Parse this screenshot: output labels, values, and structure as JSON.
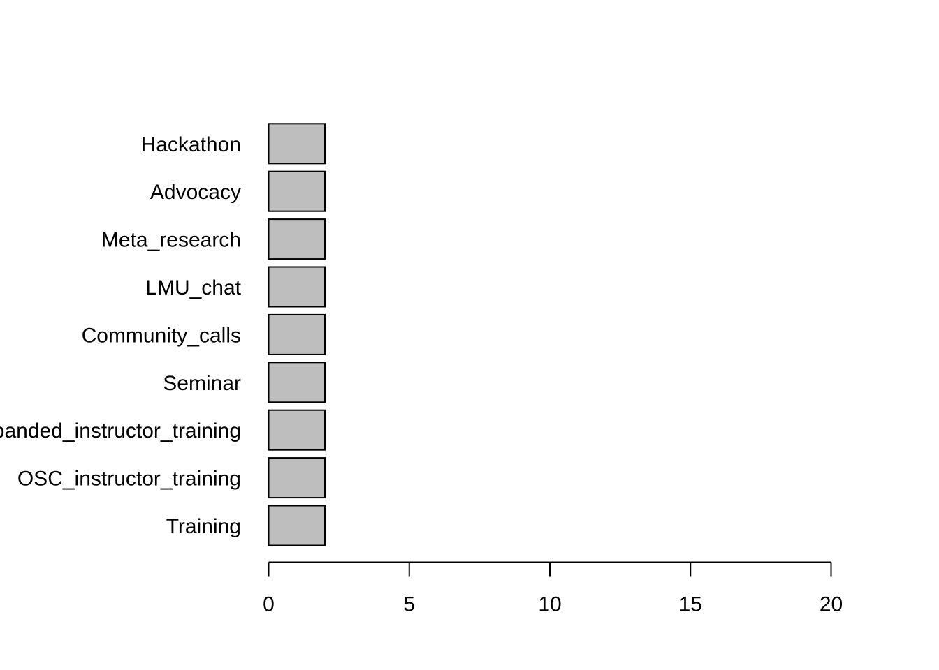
{
  "chart_data": {
    "type": "bar",
    "orientation": "horizontal",
    "categories": [
      "Training",
      "OSC_instructor_training",
      "Expanded_instructor_training",
      "Seminar",
      "Community_calls",
      "LMU_chat",
      "Meta_research",
      "Advocacy",
      "Hackathon"
    ],
    "values": [
      2,
      2,
      2,
      2,
      2,
      2,
      2,
      2,
      2
    ],
    "xlim": [
      0,
      20
    ],
    "x_ticks": [
      0,
      5,
      10,
      15,
      20
    ],
    "grid": false,
    "bar_color": "#bebebe",
    "bar_border_color": "#000000"
  }
}
